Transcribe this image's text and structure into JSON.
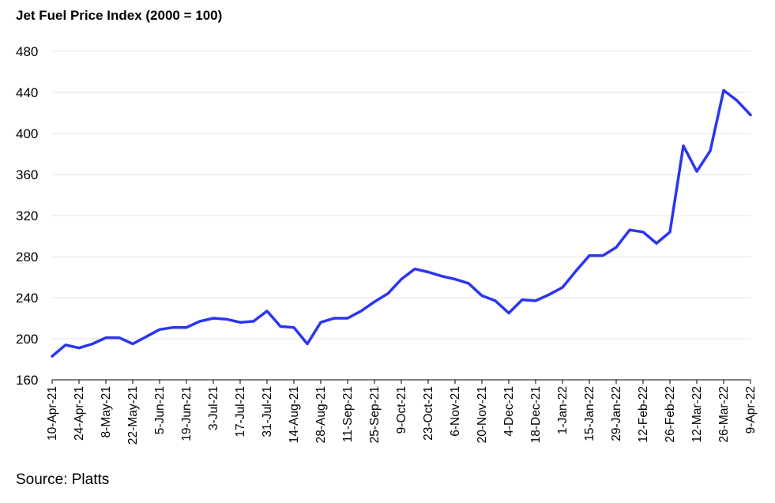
{
  "chart_data": {
    "type": "line",
    "title": "Jet Fuel Price Index (2000 = 100)",
    "source": "Source: Platts",
    "xlabel": "",
    "ylabel": "",
    "ylim": [
      160,
      480
    ],
    "yticks": [
      160,
      200,
      240,
      280,
      320,
      360,
      400,
      440,
      480
    ],
    "grid": true,
    "line_color": "#2B35F2",
    "x_tick_labels": [
      "10-Apr-21",
      "24-Apr-21",
      "8-May-21",
      "22-May-21",
      "5-Jun-21",
      "19-Jun-21",
      "3-Jul-21",
      "17-Jul-21",
      "31-Jul-21",
      "14-Aug-21",
      "28-Aug-21",
      "11-Sep-21",
      "25-Sep-21",
      "9-Oct-21",
      "23-Oct-21",
      "6-Nov-21",
      "20-Nov-21",
      "4-Dec-21",
      "18-Dec-21",
      "1-Jan-22",
      "15-Jan-22",
      "29-Jan-22",
      "12-Feb-22",
      "26-Feb-22",
      "12-Mar-22",
      "26-Mar-22",
      "9-Apr-22"
    ],
    "series": [
      {
        "x": [
          "10-Apr-21",
          "17-Apr-21",
          "24-Apr-21",
          "1-May-21",
          "8-May-21",
          "15-May-21",
          "22-May-21",
          "29-May-21",
          "5-Jun-21",
          "12-Jun-21",
          "19-Jun-21",
          "26-Jun-21",
          "3-Jul-21",
          "10-Jul-21",
          "17-Jul-21",
          "24-Jul-21",
          "31-Jul-21",
          "7-Aug-21",
          "14-Aug-21",
          "21-Aug-21",
          "28-Aug-21",
          "4-Sep-21",
          "11-Sep-21",
          "18-Sep-21",
          "25-Sep-21",
          "2-Oct-21",
          "9-Oct-21",
          "16-Oct-21",
          "23-Oct-21",
          "30-Oct-21",
          "6-Nov-21",
          "13-Nov-21",
          "20-Nov-21",
          "27-Nov-21",
          "4-Dec-21",
          "11-Dec-21",
          "18-Dec-21",
          "25-Dec-21",
          "1-Jan-22",
          "8-Jan-22",
          "15-Jan-22",
          "22-Jan-22",
          "29-Jan-22",
          "5-Feb-22",
          "12-Feb-22",
          "19-Feb-22",
          "26-Feb-22",
          "5-Mar-22",
          "12-Mar-22",
          "19-Mar-22",
          "26-Mar-22",
          "2-Apr-22",
          "9-Apr-22"
        ],
        "values": [
          183,
          194,
          191,
          195,
          201,
          201,
          195,
          202,
          209,
          211,
          211,
          217,
          220,
          219,
          216,
          217,
          227,
          212,
          211,
          195,
          216,
          220,
          220,
          227,
          236,
          244,
          258,
          268,
          265,
          261,
          258,
          254,
          242,
          237,
          225,
          238,
          237,
          243,
          250,
          266,
          281,
          281,
          289,
          306,
          304,
          293,
          304,
          388,
          363,
          383,
          442,
          432,
          418
        ]
      }
    ]
  }
}
